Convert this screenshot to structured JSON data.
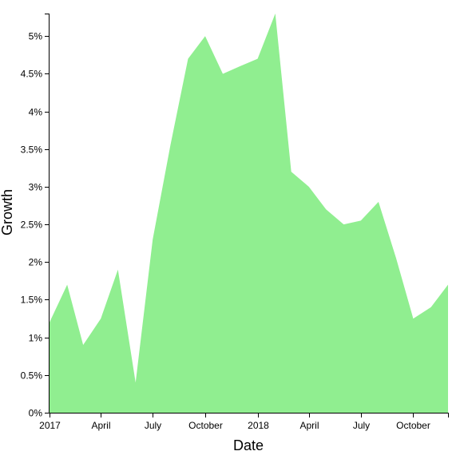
{
  "chart_data": {
    "type": "area",
    "title": "",
    "xlabel": "Date",
    "ylabel": "Growth",
    "series": [
      {
        "name": "Growth",
        "color": "#90ee90",
        "points": [
          {
            "date": "2017-01-01",
            "value": 1.2
          },
          {
            "date": "2017-02-01",
            "value": 1.7
          },
          {
            "date": "2017-03-01",
            "value": 0.9
          },
          {
            "date": "2017-04-01",
            "value": 1.25
          },
          {
            "date": "2017-05-01",
            "value": 1.9
          },
          {
            "date": "2017-06-01",
            "value": 0.4
          },
          {
            "date": "2017-07-01",
            "value": 2.3
          },
          {
            "date": "2017-08-01",
            "value": 3.55
          },
          {
            "date": "2017-09-01",
            "value": 4.7
          },
          {
            "date": "2017-10-01",
            "value": 5.0
          },
          {
            "date": "2017-11-01",
            "value": 4.5
          },
          {
            "date": "2017-12-01",
            "value": 4.6
          },
          {
            "date": "2018-01-01",
            "value": 4.7
          },
          {
            "date": "2018-02-01",
            "value": 5.3
          },
          {
            "date": "2018-03-01",
            "value": 3.2
          },
          {
            "date": "2018-04-01",
            "value": 3.0
          },
          {
            "date": "2018-05-01",
            "value": 2.7
          },
          {
            "date": "2018-06-01",
            "value": 2.5
          },
          {
            "date": "2018-07-01",
            "value": 2.55
          },
          {
            "date": "2018-08-01",
            "value": 2.8
          },
          {
            "date": "2018-09-01",
            "value": 2.05
          },
          {
            "date": "2018-10-01",
            "value": 1.25
          },
          {
            "date": "2018-11-01",
            "value": 1.4
          },
          {
            "date": "2018-12-01",
            "value": 1.7
          }
        ]
      }
    ],
    "x_domain": [
      "2017-01-01",
      "2018-12-01"
    ],
    "ylim": [
      0,
      5.3
    ],
    "x_ticks": [
      {
        "date": "2017-01-01",
        "label": "2017"
      },
      {
        "date": "2017-04-01",
        "label": "April"
      },
      {
        "date": "2017-07-01",
        "label": "July"
      },
      {
        "date": "2017-10-01",
        "label": "October"
      },
      {
        "date": "2018-01-01",
        "label": "2018"
      },
      {
        "date": "2018-04-01",
        "label": "April"
      },
      {
        "date": "2018-07-01",
        "label": "July"
      },
      {
        "date": "2018-10-01",
        "label": "October"
      }
    ],
    "y_ticks": [
      {
        "value": 0,
        "label": "0%"
      },
      {
        "value": 0.5,
        "label": "0.5%"
      },
      {
        "value": 1,
        "label": "1%"
      },
      {
        "value": 1.5,
        "label": "1.5%"
      },
      {
        "value": 2,
        "label": "2%"
      },
      {
        "value": 2.5,
        "label": "2.5%"
      },
      {
        "value": 3,
        "label": "3%"
      },
      {
        "value": 3.5,
        "label": "3.5%"
      },
      {
        "value": 4,
        "label": "4%"
      },
      {
        "value": 4.5,
        "label": "4.5%"
      },
      {
        "value": 5,
        "label": "5%"
      }
    ],
    "grid": false,
    "legend": "none"
  }
}
